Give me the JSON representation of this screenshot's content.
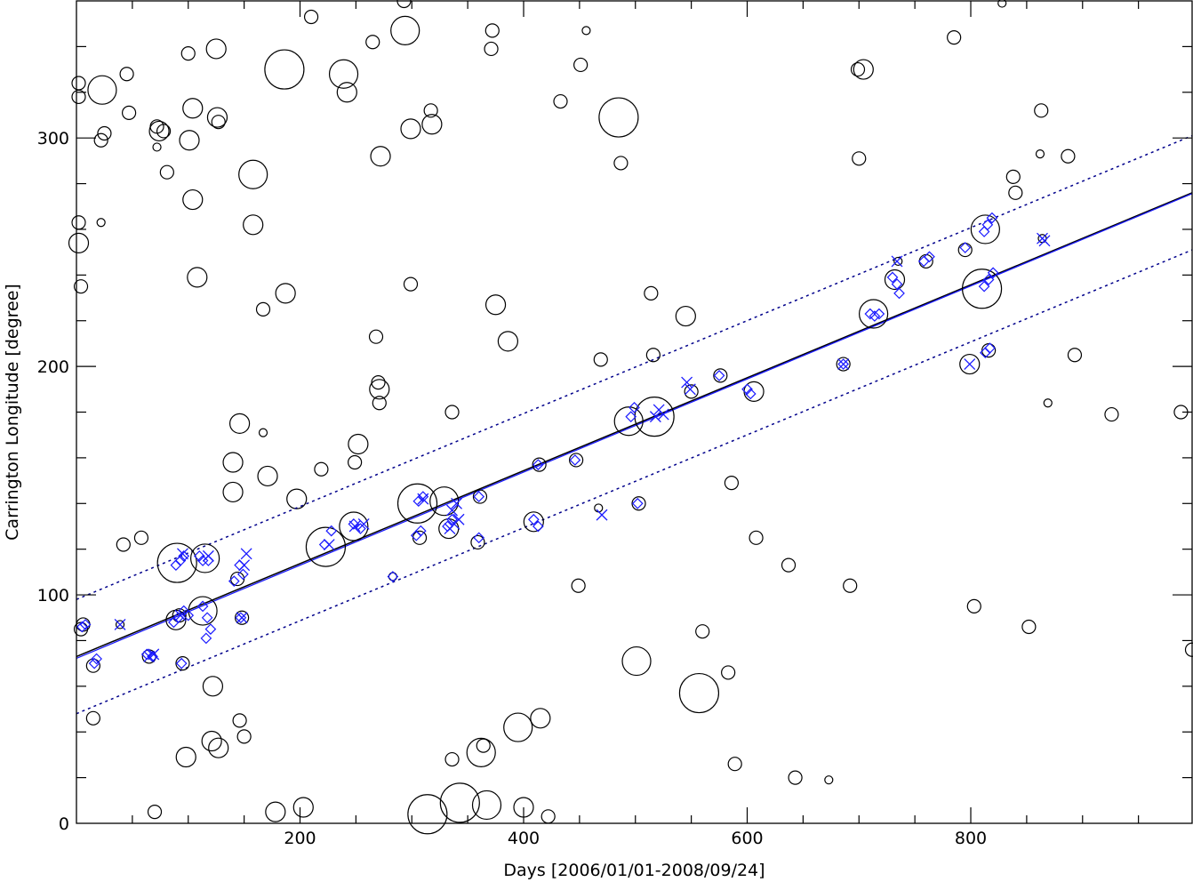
{
  "chart_data": {
    "type": "scatter",
    "title": "",
    "xlabel": "Days [2006/01/01-2008/09/24]",
    "ylabel": "Carrington Longitude [degree]",
    "xlim": [
      0,
      998
    ],
    "ylim": [
      0,
      360
    ],
    "xticks": [
      200,
      400,
      600,
      800
    ],
    "yticks": [
      0,
      100,
      200,
      300
    ],
    "grid": false,
    "colors": {
      "background": "#000000",
      "highlight": "#1a1aff",
      "fit": "#00008b"
    },
    "background_circles": [
      {
        "x": 2,
        "y": 324,
        "s": "s"
      },
      {
        "x": 2,
        "y": 318,
        "s": "s"
      },
      {
        "x": 23,
        "y": 321,
        "s": "l"
      },
      {
        "x": 45,
        "y": 328,
        "s": "s"
      },
      {
        "x": 47,
        "y": 311,
        "s": "s"
      },
      {
        "x": 25,
        "y": 302,
        "s": "s"
      },
      {
        "x": 22,
        "y": 299,
        "s": "s"
      },
      {
        "x": 72,
        "y": 305,
        "s": "s"
      },
      {
        "x": 74,
        "y": 303,
        "s": "m"
      },
      {
        "x": 78,
        "y": 303,
        "s": "s"
      },
      {
        "x": 72,
        "y": 296,
        "s": "xs"
      },
      {
        "x": 81,
        "y": 285,
        "s": "s"
      },
      {
        "x": 100,
        "y": 337,
        "s": "s"
      },
      {
        "x": 104,
        "y": 313,
        "s": "m"
      },
      {
        "x": 101,
        "y": 299,
        "s": "m"
      },
      {
        "x": 104,
        "y": 273,
        "s": "m"
      },
      {
        "x": 125,
        "y": 339,
        "s": "m"
      },
      {
        "x": 126,
        "y": 309,
        "s": "m"
      },
      {
        "x": 127,
        "y": 307,
        "s": "s"
      },
      {
        "x": 108,
        "y": 239,
        "s": "m"
      },
      {
        "x": 22,
        "y": 263,
        "s": "xs"
      },
      {
        "x": 2,
        "y": 263,
        "s": "s"
      },
      {
        "x": 2,
        "y": 254,
        "s": "m"
      },
      {
        "x": 4,
        "y": 235,
        "s": "s"
      },
      {
        "x": 158,
        "y": 284,
        "s": "l"
      },
      {
        "x": 158,
        "y": 262,
        "s": "m"
      },
      {
        "x": 167,
        "y": 225,
        "s": "s"
      },
      {
        "x": 187,
        "y": 232,
        "s": "m"
      },
      {
        "x": 186,
        "y": 330,
        "s": "xl"
      },
      {
        "x": 210,
        "y": 353,
        "s": "s"
      },
      {
        "x": 239,
        "y": 328,
        "s": "l"
      },
      {
        "x": 242,
        "y": 320,
        "s": "m"
      },
      {
        "x": 265,
        "y": 342,
        "s": "s"
      },
      {
        "x": 293,
        "y": 360,
        "s": "s"
      },
      {
        "x": 294,
        "y": 347,
        "s": "l"
      },
      {
        "x": 299,
        "y": 304,
        "s": "m"
      },
      {
        "x": 317,
        "y": 312,
        "s": "s"
      },
      {
        "x": 318,
        "y": 306,
        "s": "m"
      },
      {
        "x": 272,
        "y": 292,
        "s": "m"
      },
      {
        "x": 268,
        "y": 213,
        "s": "s"
      },
      {
        "x": 270,
        "y": 193,
        "s": "s"
      },
      {
        "x": 271,
        "y": 190,
        "s": "m"
      },
      {
        "x": 271,
        "y": 184,
        "s": "s"
      },
      {
        "x": 299,
        "y": 236,
        "s": "s"
      },
      {
        "x": 146,
        "y": 175,
        "s": "m"
      },
      {
        "x": 167,
        "y": 171,
        "s": "xs"
      },
      {
        "x": 140,
        "y": 158,
        "s": "m"
      },
      {
        "x": 140,
        "y": 145,
        "s": "m"
      },
      {
        "x": 171,
        "y": 152,
        "s": "m"
      },
      {
        "x": 197,
        "y": 142,
        "s": "m"
      },
      {
        "x": 219,
        "y": 155,
        "s": "s"
      },
      {
        "x": 249,
        "y": 158,
        "s": "s"
      },
      {
        "x": 252,
        "y": 166,
        "s": "m"
      },
      {
        "x": 336,
        "y": 180,
        "s": "s"
      },
      {
        "x": 372,
        "y": 347,
        "s": "s"
      },
      {
        "x": 371,
        "y": 339,
        "s": "s"
      },
      {
        "x": 451,
        "y": 332,
        "s": "s"
      },
      {
        "x": 456,
        "y": 347,
        "s": "xs"
      },
      {
        "x": 433,
        "y": 316,
        "s": "s"
      },
      {
        "x": 485,
        "y": 309,
        "s": "xl"
      },
      {
        "x": 487,
        "y": 289,
        "s": "s"
      },
      {
        "x": 375,
        "y": 227,
        "s": "m"
      },
      {
        "x": 386,
        "y": 211,
        "s": "m"
      },
      {
        "x": 469,
        "y": 203,
        "s": "s"
      },
      {
        "x": 514,
        "y": 232,
        "s": "s"
      },
      {
        "x": 516,
        "y": 205,
        "s": "s"
      },
      {
        "x": 545,
        "y": 222,
        "s": "m"
      },
      {
        "x": 586,
        "y": 149,
        "s": "s"
      },
      {
        "x": 608,
        "y": 125,
        "s": "s"
      },
      {
        "x": 637,
        "y": 113,
        "s": "s"
      },
      {
        "x": 449,
        "y": 104,
        "s": "s"
      },
      {
        "x": 692,
        "y": 104,
        "s": "s"
      },
      {
        "x": 699,
        "y": 330,
        "s": "s"
      },
      {
        "x": 704,
        "y": 330,
        "s": "m"
      },
      {
        "x": 700,
        "y": 291,
        "s": "s"
      },
      {
        "x": 785,
        "y": 344,
        "s": "s"
      },
      {
        "x": 828,
        "y": 359,
        "s": "xs"
      },
      {
        "x": 863,
        "y": 312,
        "s": "s"
      },
      {
        "x": 862,
        "y": 293,
        "s": "xs"
      },
      {
        "x": 887,
        "y": 292,
        "s": "s"
      },
      {
        "x": 838,
        "y": 283,
        "s": "s"
      },
      {
        "x": 840,
        "y": 276,
        "s": "s"
      },
      {
        "x": 893,
        "y": 205,
        "s": "s"
      },
      {
        "x": 869,
        "y": 184,
        "s": "xs"
      },
      {
        "x": 926,
        "y": 179,
        "s": "s"
      },
      {
        "x": 988,
        "y": 180,
        "s": "s"
      },
      {
        "x": 998,
        "y": 76,
        "s": "s"
      },
      {
        "x": 803,
        "y": 95,
        "s": "s"
      },
      {
        "x": 852,
        "y": 86,
        "s": "s"
      },
      {
        "x": 15,
        "y": 46,
        "s": "s"
      },
      {
        "x": 42,
        "y": 122,
        "s": "s"
      },
      {
        "x": 58,
        "y": 125,
        "s": "s"
      },
      {
        "x": 70,
        "y": 5,
        "s": "s"
      },
      {
        "x": 98,
        "y": 29,
        "s": "m"
      },
      {
        "x": 121,
        "y": 36,
        "s": "m"
      },
      {
        "x": 127,
        "y": 33,
        "s": "m"
      },
      {
        "x": 122,
        "y": 60,
        "s": "m"
      },
      {
        "x": 146,
        "y": 45,
        "s": "s"
      },
      {
        "x": 150,
        "y": 38,
        "s": "s"
      },
      {
        "x": 178,
        "y": 5,
        "s": "m"
      },
      {
        "x": 203,
        "y": 7,
        "s": "m"
      },
      {
        "x": 314,
        "y": 4,
        "s": "xl"
      },
      {
        "x": 343,
        "y": 9,
        "s": "xl"
      },
      {
        "x": 336,
        "y": 28,
        "s": "s"
      },
      {
        "x": 364,
        "y": 34,
        "s": "s"
      },
      {
        "x": 362,
        "y": 31,
        "s": "l"
      },
      {
        "x": 367,
        "y": 8,
        "s": "l"
      },
      {
        "x": 395,
        "y": 42,
        "s": "l"
      },
      {
        "x": 415,
        "y": 46,
        "s": "m"
      },
      {
        "x": 400,
        "y": 7,
        "s": "m"
      },
      {
        "x": 422,
        "y": 3,
        "s": "s"
      },
      {
        "x": 501,
        "y": 71,
        "s": "l"
      },
      {
        "x": 557,
        "y": 57,
        "s": "xl"
      },
      {
        "x": 560,
        "y": 84,
        "s": "s"
      },
      {
        "x": 583,
        "y": 66,
        "s": "s"
      },
      {
        "x": 589,
        "y": 26,
        "s": "s"
      },
      {
        "x": 643,
        "y": 20,
        "s": "s"
      },
      {
        "x": 673,
        "y": 19,
        "s": "xs"
      }
    ],
    "track_circles": [
      {
        "x": 6,
        "y": 87,
        "s": "s"
      },
      {
        "x": 4,
        "y": 85,
        "s": "s"
      },
      {
        "x": 15,
        "y": 69,
        "s": "s"
      },
      {
        "x": 39,
        "y": 87,
        "s": "xs"
      },
      {
        "x": 65,
        "y": 73,
        "s": "s"
      },
      {
        "x": 90,
        "y": 114,
        "s": "xl"
      },
      {
        "x": 115,
        "y": 116,
        "s": "l"
      },
      {
        "x": 89,
        "y": 89,
        "s": "m"
      },
      {
        "x": 92,
        "y": 91,
        "s": "s"
      },
      {
        "x": 95,
        "y": 70,
        "s": "s"
      },
      {
        "x": 113,
        "y": 93,
        "s": "l"
      },
      {
        "x": 144,
        "y": 107,
        "s": "s"
      },
      {
        "x": 148,
        "y": 90,
        "s": "s"
      },
      {
        "x": 223,
        "y": 121,
        "s": "xl"
      },
      {
        "x": 248,
        "y": 130,
        "s": "l"
      },
      {
        "x": 283,
        "y": 108,
        "s": "xs"
      },
      {
        "x": 305,
        "y": 140,
        "s": "xl"
      },
      {
        "x": 307,
        "y": 125,
        "s": "s"
      },
      {
        "x": 329,
        "y": 141,
        "s": "l"
      },
      {
        "x": 333,
        "y": 129,
        "s": "m"
      },
      {
        "x": 361,
        "y": 143,
        "s": "s"
      },
      {
        "x": 359,
        "y": 123,
        "s": "s"
      },
      {
        "x": 414,
        "y": 157,
        "s": "s"
      },
      {
        "x": 409,
        "y": 132,
        "s": "m"
      },
      {
        "x": 447,
        "y": 159,
        "s": "s"
      },
      {
        "x": 467,
        "y": 138,
        "s": "xs"
      },
      {
        "x": 494,
        "y": 176,
        "s": "l"
      },
      {
        "x": 503,
        "y": 140,
        "s": "s"
      },
      {
        "x": 517,
        "y": 178,
        "s": "xl"
      },
      {
        "x": 550,
        "y": 189,
        "s": "s"
      },
      {
        "x": 576,
        "y": 196,
        "s": "s"
      },
      {
        "x": 606,
        "y": 189,
        "s": "m"
      },
      {
        "x": 686,
        "y": 201,
        "s": "s"
      },
      {
        "x": 713,
        "y": 223,
        "s": "l"
      },
      {
        "x": 732,
        "y": 238,
        "s": "m"
      },
      {
        "x": 735,
        "y": 246,
        "s": "xs"
      },
      {
        "x": 760,
        "y": 246,
        "s": "s"
      },
      {
        "x": 795,
        "y": 251,
        "s": "s"
      },
      {
        "x": 799,
        "y": 201,
        "s": "m"
      },
      {
        "x": 813,
        "y": 260,
        "s": "l"
      },
      {
        "x": 810,
        "y": 234,
        "s": "xl"
      },
      {
        "x": 816,
        "y": 207,
        "s": "s"
      },
      {
        "x": 864,
        "y": 256,
        "s": "xs"
      }
    ],
    "diamond_markers": [
      {
        "x": 5,
        "y": 86
      },
      {
        "x": 8,
        "y": 87
      },
      {
        "x": 16,
        "y": 70
      },
      {
        "x": 18,
        "y": 72
      },
      {
        "x": 63,
        "y": 74
      },
      {
        "x": 68,
        "y": 73
      },
      {
        "x": 89,
        "y": 113
      },
      {
        "x": 93,
        "y": 115
      },
      {
        "x": 96,
        "y": 117
      },
      {
        "x": 110,
        "y": 117
      },
      {
        "x": 113,
        "y": 115
      },
      {
        "x": 118,
        "y": 115
      },
      {
        "x": 87,
        "y": 88
      },
      {
        "x": 91,
        "y": 90
      },
      {
        "x": 96,
        "y": 93
      },
      {
        "x": 100,
        "y": 91
      },
      {
        "x": 94,
        "y": 70
      },
      {
        "x": 113,
        "y": 95
      },
      {
        "x": 117,
        "y": 90
      },
      {
        "x": 120,
        "y": 85
      },
      {
        "x": 116,
        "y": 81
      },
      {
        "x": 141,
        "y": 106
      },
      {
        "x": 146,
        "y": 113
      },
      {
        "x": 149,
        "y": 109
      },
      {
        "x": 147,
        "y": 90
      },
      {
        "x": 222,
        "y": 122
      },
      {
        "x": 228,
        "y": 128
      },
      {
        "x": 248,
        "y": 131
      },
      {
        "x": 254,
        "y": 129
      },
      {
        "x": 283,
        "y": 108
      },
      {
        "x": 304,
        "y": 126
      },
      {
        "x": 308,
        "y": 128
      },
      {
        "x": 306,
        "y": 141
      },
      {
        "x": 310,
        "y": 143
      },
      {
        "x": 332,
        "y": 130
      },
      {
        "x": 336,
        "y": 133
      },
      {
        "x": 360,
        "y": 143
      },
      {
        "x": 360,
        "y": 125
      },
      {
        "x": 413,
        "y": 157
      },
      {
        "x": 409,
        "y": 133
      },
      {
        "x": 413,
        "y": 130
      },
      {
        "x": 446,
        "y": 159
      },
      {
        "x": 496,
        "y": 178
      },
      {
        "x": 499,
        "y": 182
      },
      {
        "x": 502,
        "y": 140
      },
      {
        "x": 575,
        "y": 196
      },
      {
        "x": 600,
        "y": 190
      },
      {
        "x": 603,
        "y": 188
      },
      {
        "x": 686,
        "y": 201
      },
      {
        "x": 710,
        "y": 223
      },
      {
        "x": 714,
        "y": 222
      },
      {
        "x": 718,
        "y": 223
      },
      {
        "x": 730,
        "y": 239
      },
      {
        "x": 734,
        "y": 236
      },
      {
        "x": 736,
        "y": 232
      },
      {
        "x": 758,
        "y": 246
      },
      {
        "x": 763,
        "y": 248
      },
      {
        "x": 795,
        "y": 252
      },
      {
        "x": 812,
        "y": 259
      },
      {
        "x": 815,
        "y": 262
      },
      {
        "x": 819,
        "y": 265
      },
      {
        "x": 812,
        "y": 235
      },
      {
        "x": 816,
        "y": 238
      },
      {
        "x": 820,
        "y": 241
      },
      {
        "x": 813,
        "y": 206
      },
      {
        "x": 817,
        "y": 208
      }
    ],
    "cross_markers": [
      {
        "x": 39,
        "y": 87
      },
      {
        "x": 65,
        "y": 73
      },
      {
        "x": 69,
        "y": 74
      },
      {
        "x": 95,
        "y": 118
      },
      {
        "x": 118,
        "y": 117
      },
      {
        "x": 93,
        "y": 91
      },
      {
        "x": 150,
        "y": 113
      },
      {
        "x": 152,
        "y": 118
      },
      {
        "x": 148,
        "y": 90
      },
      {
        "x": 226,
        "y": 122
      },
      {
        "x": 249,
        "y": 130
      },
      {
        "x": 257,
        "y": 131
      },
      {
        "x": 310,
        "y": 142
      },
      {
        "x": 334,
        "y": 129
      },
      {
        "x": 338,
        "y": 131
      },
      {
        "x": 340,
        "y": 140
      },
      {
        "x": 336,
        "y": 137
      },
      {
        "x": 342,
        "y": 133
      },
      {
        "x": 470,
        "y": 135
      },
      {
        "x": 518,
        "y": 178
      },
      {
        "x": 521,
        "y": 181
      },
      {
        "x": 525,
        "y": 179
      },
      {
        "x": 546,
        "y": 193
      },
      {
        "x": 549,
        "y": 190
      },
      {
        "x": 686,
        "y": 201
      },
      {
        "x": 734,
        "y": 246
      },
      {
        "x": 799,
        "y": 201
      },
      {
        "x": 864,
        "y": 256
      },
      {
        "x": 866,
        "y": 255
      }
    ],
    "fit_line": {
      "x": [
        0,
        998
      ],
      "y": [
        73,
        276
      ]
    },
    "upper_bound": {
      "x": [
        0,
        998
      ],
      "y": [
        98,
        301
      ]
    },
    "lower_bound": {
      "x": [
        0,
        998
      ],
      "y": [
        48,
        251
      ]
    }
  }
}
